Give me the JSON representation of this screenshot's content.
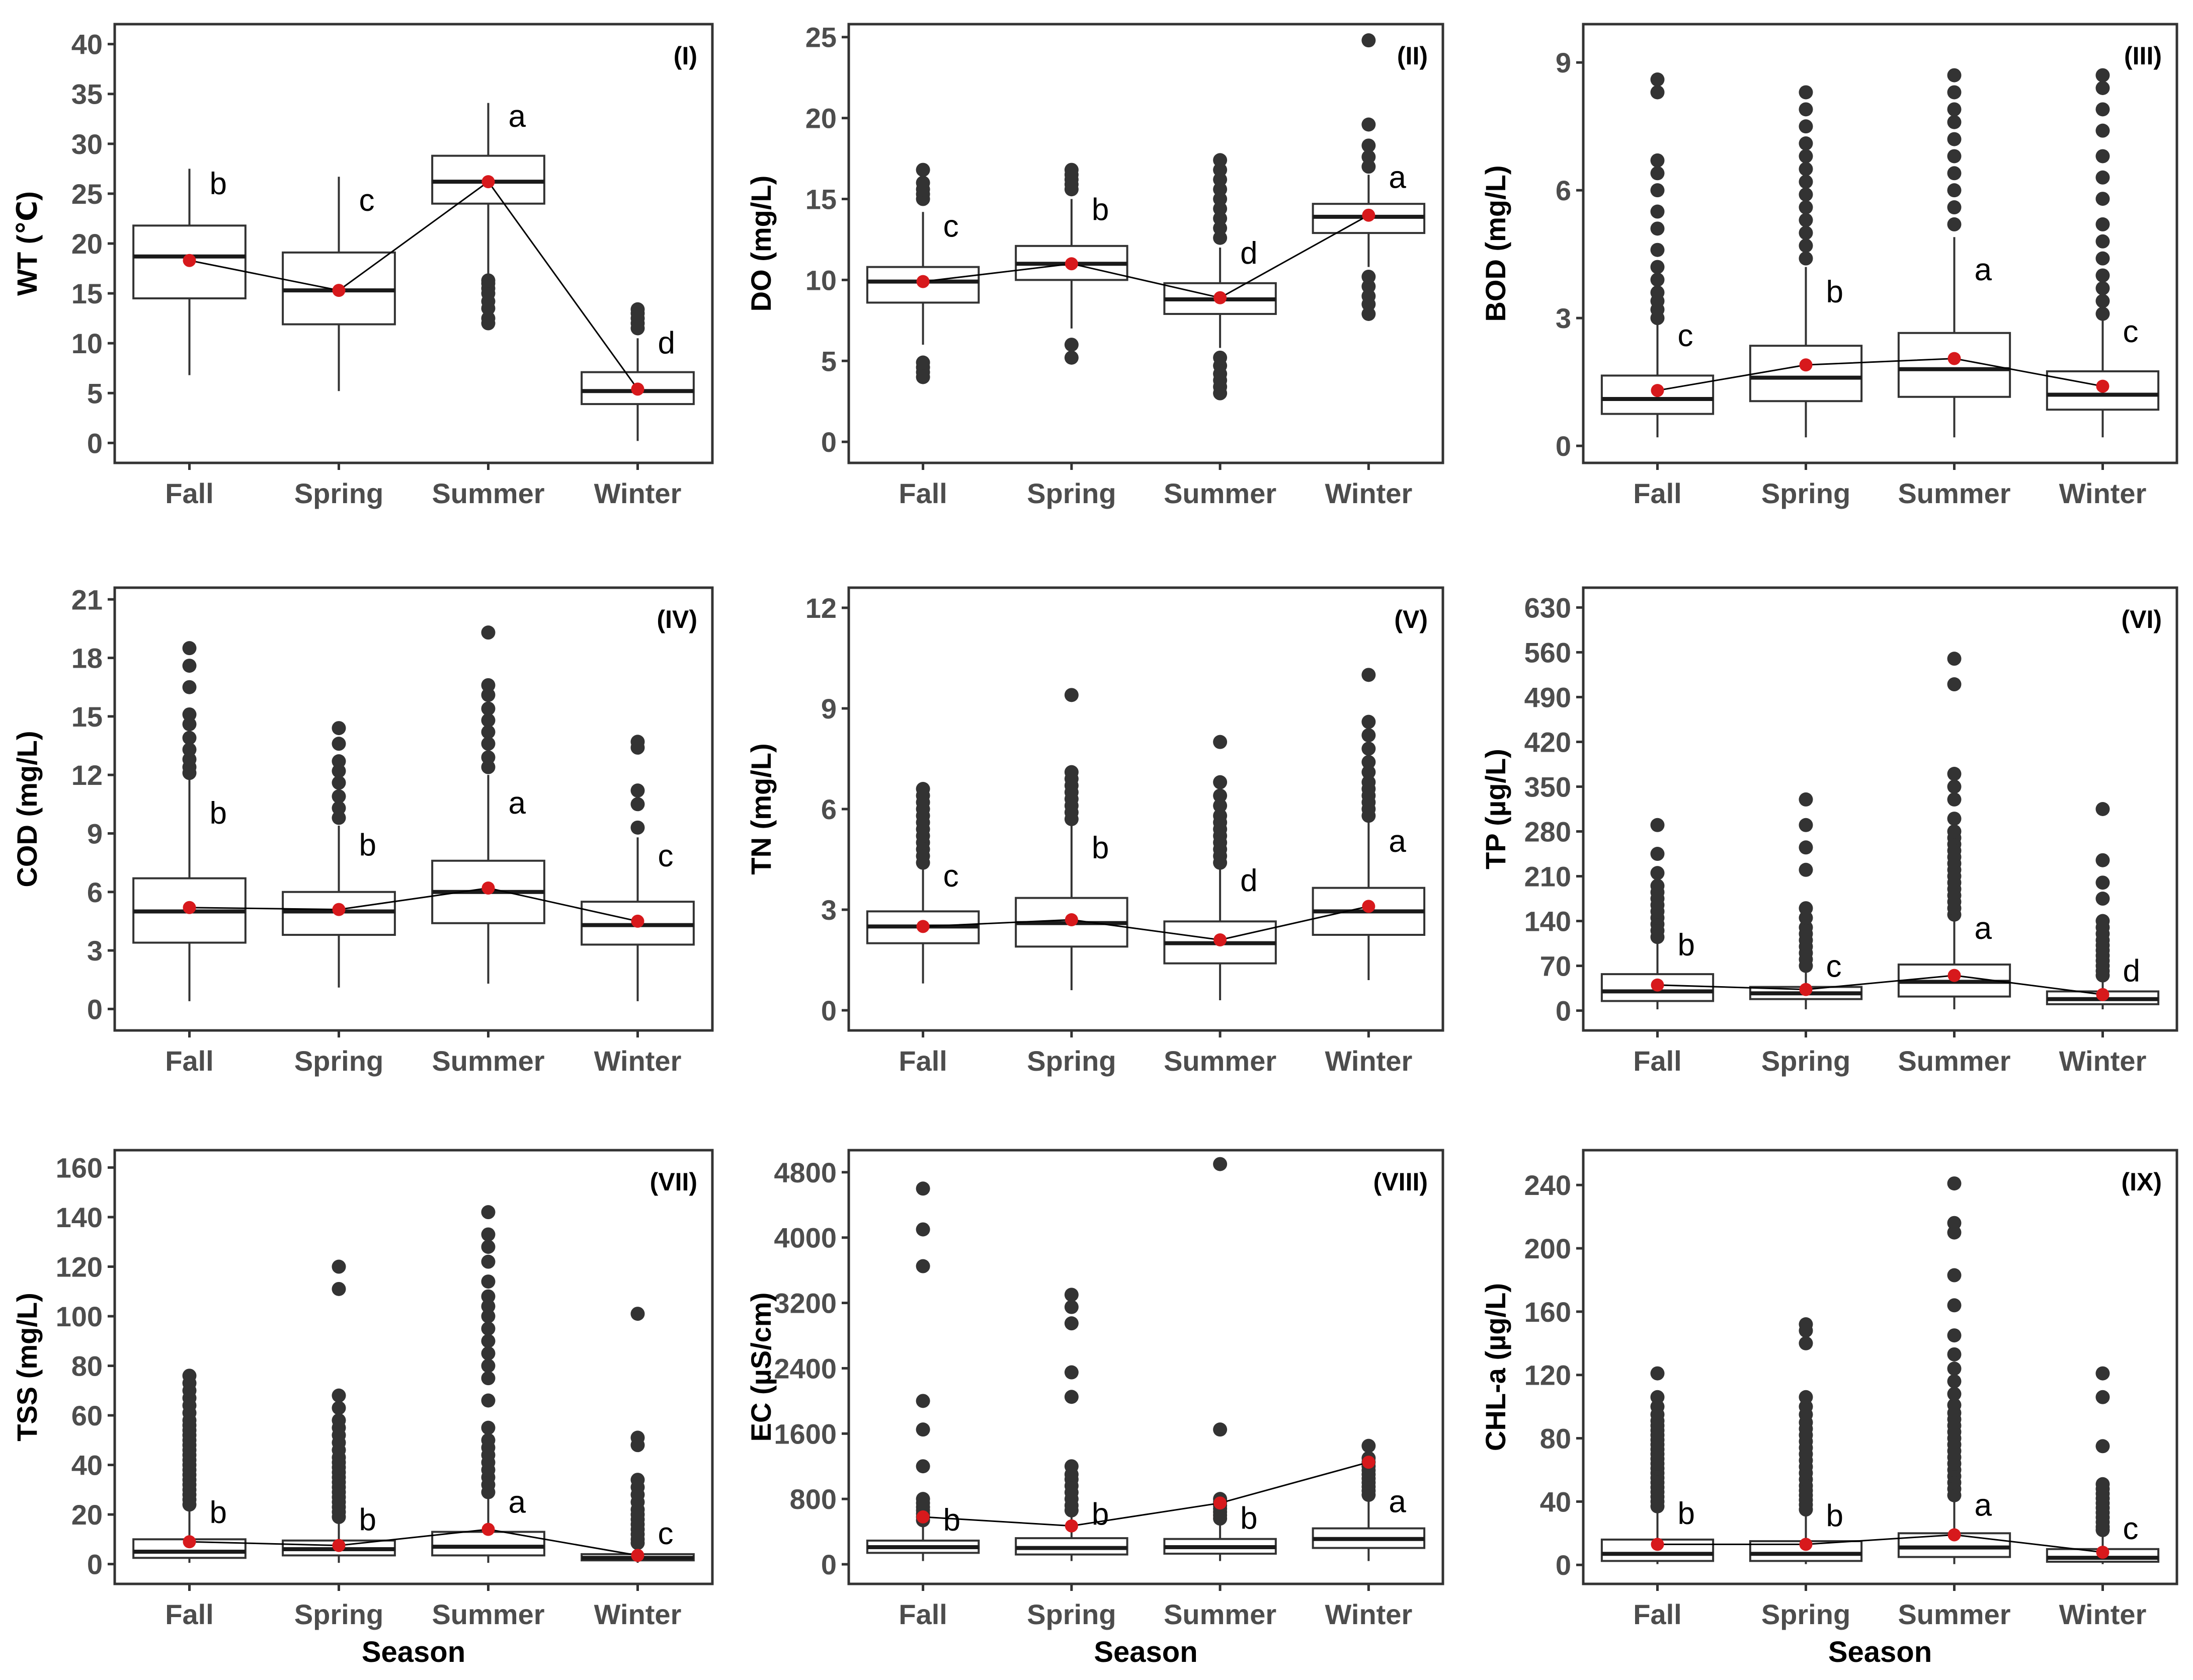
{
  "colors": {
    "mean": "#d7191c",
    "outlier": "#333333",
    "box_fill": "#ffffff"
  },
  "chart_data": [
    {
      "type": "box",
      "panel": "(I)",
      "ylabel": "WT (℃)",
      "xlabel": "",
      "categories": [
        "Fall",
        "Spring",
        "Summer",
        "Winter"
      ],
      "ylim": [
        -2,
        42
      ],
      "yticks": [
        0,
        5,
        10,
        15,
        20,
        25,
        30,
        35,
        40
      ],
      "boxes": [
        {
          "whislo": 6.8,
          "q1": 14.5,
          "med": 18.7,
          "q3": 21.8,
          "whishi": 27.5,
          "mean": 18.3,
          "letter": "b",
          "fliers": []
        },
        {
          "whislo": 5.2,
          "q1": 11.9,
          "med": 15.3,
          "q3": 19.1,
          "whishi": 26.7,
          "mean": 15.3,
          "letter": "c",
          "fliers": []
        },
        {
          "whislo": 17.0,
          "q1": 24.0,
          "med": 26.2,
          "q3": 28.8,
          "whishi": 34.1,
          "mean": 26.2,
          "letter": "a",
          "fliers": [
            12,
            12.5,
            13.5,
            14.2,
            15,
            15.5,
            16,
            16.3
          ]
        },
        {
          "whislo": 0.2,
          "q1": 3.9,
          "med": 5.2,
          "q3": 7.1,
          "whishi": 10.5,
          "mean": 5.4,
          "letter": "d",
          "fliers": [
            11.5,
            12,
            12.5,
            13,
            13.4
          ]
        }
      ]
    },
    {
      "type": "box",
      "panel": "(II)",
      "ylabel": "DO (mg/L)",
      "xlabel": "",
      "categories": [
        "Fall",
        "Spring",
        "Summer",
        "Winter"
      ],
      "ylim": [
        -1.3,
        25.8
      ],
      "yticks": [
        0,
        5,
        10,
        15,
        20,
        25
      ],
      "boxes": [
        {
          "whislo": 6.0,
          "q1": 8.6,
          "med": 9.9,
          "q3": 10.8,
          "whishi": 14.2,
          "mean": 9.9,
          "letter": "c",
          "fliers": [
            4.0,
            4.3,
            4.6,
            4.9,
            15.0,
            15.3,
            15.6,
            16.0,
            16.8
          ]
        },
        {
          "whislo": 7.0,
          "q1": 10.0,
          "med": 11.0,
          "q3": 12.1,
          "whishi": 15.0,
          "mean": 11.0,
          "letter": "b",
          "fliers": [
            5.2,
            6.0,
            15.6,
            15.9,
            16.2,
            16.5,
            16.8
          ]
        },
        {
          "whislo": 5.8,
          "q1": 7.9,
          "med": 8.8,
          "q3": 9.8,
          "whishi": 12.0,
          "mean": 8.9,
          "letter": "d",
          "fliers": [
            3.0,
            3.4,
            3.8,
            4.2,
            4.7,
            5.2,
            12.6,
            13.2,
            13.8,
            14.4,
            15.0,
            15.6,
            16.2,
            16.8,
            17.4
          ]
        },
        {
          "whislo": 10.8,
          "q1": 12.9,
          "med": 13.9,
          "q3": 14.7,
          "whishi": 16.5,
          "mean": 14.0,
          "letter": "a",
          "fliers": [
            7.9,
            8.5,
            9.0,
            9.6,
            10.2,
            17.0,
            17.6,
            18.3,
            19.6,
            24.8
          ]
        }
      ]
    },
    {
      "type": "box",
      "panel": "(III)",
      "ylabel": "BOD (mg/L)",
      "xlabel": "",
      "categories": [
        "Fall",
        "Spring",
        "Summer",
        "Winter"
      ],
      "ylim": [
        -0.4,
        9.9
      ],
      "yticks": [
        0,
        3,
        6,
        9
      ],
      "boxes": [
        {
          "whislo": 0.2,
          "q1": 0.75,
          "med": 1.1,
          "q3": 1.65,
          "whishi": 2.9,
          "mean": 1.3,
          "letter": "c",
          "fliers": [
            3.0,
            3.2,
            3.4,
            3.6,
            3.9,
            4.2,
            4.6,
            5.1,
            5.5,
            6.0,
            6.4,
            6.7,
            8.3,
            8.6
          ]
        },
        {
          "whislo": 0.2,
          "q1": 1.05,
          "med": 1.6,
          "q3": 2.35,
          "whishi": 4.2,
          "mean": 1.9,
          "letter": "b",
          "fliers": [
            4.4,
            4.7,
            5.0,
            5.3,
            5.6,
            5.9,
            6.2,
            6.5,
            6.8,
            7.1,
            7.5,
            7.9,
            8.3
          ]
        },
        {
          "whislo": 0.2,
          "q1": 1.15,
          "med": 1.8,
          "q3": 2.65,
          "whishi": 4.9,
          "mean": 2.05,
          "letter": "a",
          "fliers": [
            5.2,
            5.6,
            6.0,
            6.4,
            6.8,
            7.2,
            7.6,
            7.9,
            8.3,
            8.7
          ]
        },
        {
          "whislo": 0.2,
          "q1": 0.85,
          "med": 1.2,
          "q3": 1.75,
          "whishi": 3.0,
          "mean": 1.4,
          "letter": "c",
          "fliers": [
            3.1,
            3.4,
            3.7,
            4.0,
            4.4,
            4.8,
            5.2,
            5.8,
            6.3,
            6.8,
            7.4,
            7.9,
            8.4,
            8.7
          ]
        }
      ]
    },
    {
      "type": "box",
      "panel": "(IV)",
      "ylabel": "COD (mg/L)",
      "xlabel": "",
      "categories": [
        "Fall",
        "Spring",
        "Summer",
        "Winter"
      ],
      "ylim": [
        -1.1,
        21.6
      ],
      "yticks": [
        0,
        3,
        6,
        9,
        12,
        15,
        18,
        21
      ],
      "boxes": [
        {
          "whislo": 0.4,
          "q1": 3.4,
          "med": 5.0,
          "q3": 6.7,
          "whishi": 11.8,
          "mean": 5.2,
          "letter": "b",
          "fliers": [
            12.1,
            12.4,
            12.8,
            13.3,
            13.9,
            14.6,
            15.1,
            16.5,
            17.6,
            18.5
          ]
        },
        {
          "whislo": 1.1,
          "q1": 3.8,
          "med": 5.0,
          "q3": 6.0,
          "whishi": 9.4,
          "mean": 5.1,
          "letter": "b",
          "fliers": [
            9.8,
            10.3,
            10.9,
            11.6,
            12.2,
            12.7,
            13.6,
            14.4
          ]
        },
        {
          "whislo": 1.3,
          "q1": 4.4,
          "med": 6.0,
          "q3": 7.6,
          "whishi": 12.0,
          "mean": 6.2,
          "letter": "a",
          "fliers": [
            12.4,
            12.9,
            13.6,
            14.2,
            14.8,
            15.4,
            16.1,
            16.6,
            19.3
          ]
        },
        {
          "whislo": 0.4,
          "q1": 3.3,
          "med": 4.3,
          "q3": 5.5,
          "whishi": 8.8,
          "mean": 4.5,
          "letter": "c",
          "fliers": [
            9.3,
            10.5,
            11.2,
            13.4,
            13.7
          ]
        }
      ]
    },
    {
      "type": "box",
      "panel": "(V)",
      "ylabel": "TN (mg/L)",
      "xlabel": "",
      "categories": [
        "Fall",
        "Spring",
        "Summer",
        "Winter"
      ],
      "ylim": [
        -0.6,
        12.6
      ],
      "yticks": [
        0,
        3,
        6,
        9,
        12
      ],
      "boxes": [
        {
          "whislo": 0.8,
          "q1": 2.0,
          "med": 2.5,
          "q3": 2.95,
          "whishi": 4.3,
          "mean": 2.5,
          "letter": "c",
          "fliers": [
            4.4,
            4.6,
            4.8,
            5.0,
            5.2,
            5.4,
            5.6,
            5.8,
            6.0,
            6.2,
            6.4,
            6.6
          ]
        },
        {
          "whislo": 0.6,
          "q1": 1.9,
          "med": 2.6,
          "q3": 3.35,
          "whishi": 5.5,
          "mean": 2.7,
          "letter": "b",
          "fliers": [
            5.7,
            5.9,
            6.1,
            6.3,
            6.5,
            6.7,
            6.9,
            7.1,
            9.4
          ]
        },
        {
          "whislo": 0.3,
          "q1": 1.4,
          "med": 2.0,
          "q3": 2.65,
          "whishi": 4.3,
          "mean": 2.1,
          "letter": "d",
          "fliers": [
            4.4,
            4.6,
            4.8,
            5.0,
            5.2,
            5.4,
            5.6,
            5.8,
            6.1,
            6.4,
            6.8,
            8.0
          ]
        },
        {
          "whislo": 0.9,
          "q1": 2.25,
          "med": 2.95,
          "q3": 3.65,
          "whishi": 5.6,
          "mean": 3.1,
          "letter": "a",
          "fliers": [
            5.8,
            6.0,
            6.2,
            6.4,
            6.6,
            6.8,
            7.1,
            7.4,
            7.8,
            8.2,
            8.6,
            10.0
          ]
        }
      ]
    },
    {
      "type": "box",
      "panel": "(VI)",
      "ylabel": "TP (µg/L)",
      "xlabel": "",
      "categories": [
        "Fall",
        "Spring",
        "Summer",
        "Winter"
      ],
      "ylim": [
        -31,
        661
      ],
      "yticks": [
        0,
        70,
        140,
        210,
        280,
        350,
        420,
        490,
        560,
        630
      ],
      "boxes": [
        {
          "whislo": 2,
          "q1": 15,
          "med": 30,
          "q3": 57,
          "whishi": 110,
          "mean": 40,
          "letter": "b",
          "fliers": [
            115,
            125,
            135,
            145,
            155,
            165,
            175,
            185,
            195,
            215,
            245,
            290
          ]
        },
        {
          "whislo": 2,
          "q1": 18,
          "med": 27,
          "q3": 37,
          "whishi": 62,
          "mean": 33,
          "letter": "c",
          "fliers": [
            70,
            80,
            90,
            100,
            110,
            120,
            130,
            145,
            160,
            220,
            255,
            290,
            330
          ]
        },
        {
          "whislo": 2,
          "q1": 22,
          "med": 45,
          "q3": 72,
          "whishi": 145,
          "mean": 55,
          "letter": "a",
          "fliers": [
            150,
            160,
            170,
            180,
            190,
            200,
            210,
            220,
            230,
            240,
            250,
            260,
            270,
            280,
            300,
            330,
            350,
            370,
            510,
            550
          ]
        },
        {
          "whislo": 2,
          "q1": 10,
          "med": 18,
          "q3": 30,
          "whishi": 52,
          "mean": 25,
          "letter": "d",
          "fliers": [
            55,
            62,
            70,
            78,
            86,
            94,
            102,
            110,
            120,
            130,
            140,
            175,
            200,
            235,
            315
          ]
        }
      ]
    },
    {
      "type": "box",
      "panel": "(VII)",
      "ylabel": "TSS (mg/L)",
      "xlabel": "Season",
      "categories": [
        "Fall",
        "Spring",
        "Summer",
        "Winter"
      ],
      "ylim": [
        -8,
        167
      ],
      "yticks": [
        0,
        20,
        40,
        60,
        80,
        100,
        120,
        140,
        160
      ],
      "boxes": [
        {
          "whislo": 0.5,
          "q1": 2.5,
          "med": 5.0,
          "q3": 10.0,
          "whishi": 22,
          "mean": 9.0,
          "letter": "b",
          "fliers": [
            24,
            26,
            28,
            30,
            32,
            34,
            36,
            38,
            40,
            42,
            44,
            46,
            48,
            50,
            52,
            54,
            56,
            58,
            61,
            64,
            67,
            70,
            73,
            76
          ]
        },
        {
          "whislo": 0.5,
          "q1": 3.5,
          "med": 6.0,
          "q3": 9.5,
          "whishi": 17,
          "mean": 7.5,
          "letter": "b",
          "fliers": [
            19,
            21,
            23,
            25,
            27,
            29,
            31,
            33,
            35,
            37,
            39,
            41,
            43,
            46,
            49,
            52,
            55,
            58,
            63,
            68,
            111,
            120
          ]
        },
        {
          "whislo": 0.5,
          "q1": 3.5,
          "med": 7.0,
          "q3": 13.0,
          "whishi": 27,
          "mean": 14.0,
          "letter": "a",
          "fliers": [
            29,
            32,
            35,
            38,
            41,
            44,
            47,
            50,
            55,
            66,
            75,
            80,
            85,
            90,
            95,
            100,
            104,
            108,
            114,
            122,
            128,
            133,
            142
          ]
        },
        {
          "whislo": 0.5,
          "q1": 1.5,
          "med": 2.5,
          "q3": 4.0,
          "whishi": 7.5,
          "mean": 3.5,
          "letter": "c",
          "fliers": [
            8.5,
            10,
            12,
            14,
            16,
            18,
            20,
            22,
            25,
            28,
            31,
            34,
            48,
            51,
            101
          ]
        }
      ]
    },
    {
      "type": "box",
      "panel": "(VIII)",
      "ylabel": "EC (µS/cm)",
      "xlabel": "Season",
      "categories": [
        "Fall",
        "Spring",
        "Summer",
        "Winter"
      ],
      "ylim": [
        -240,
        5070
      ],
      "yticks": [
        0,
        800,
        1600,
        2400,
        3200,
        4000,
        4800
      ],
      "boxes": [
        {
          "whislo": 40,
          "q1": 140,
          "med": 210,
          "q3": 290,
          "whishi": 500,
          "mean": 580,
          "letter": "b",
          "fliers": [
            540,
            580,
            620,
            660,
            700,
            750,
            800,
            1200,
            1650,
            2000,
            3650,
            4100,
            4600
          ]
        },
        {
          "whislo": 40,
          "q1": 120,
          "med": 200,
          "q3": 320,
          "whishi": 620,
          "mean": 470,
          "letter": "b",
          "fliers": [
            660,
            720,
            800,
            880,
            960,
            1040,
            1100,
            1200,
            2050,
            2350,
            2950,
            3150,
            3300
          ]
        },
        {
          "whislo": 40,
          "q1": 130,
          "med": 210,
          "q3": 310,
          "whishi": 520,
          "mean": 750,
          "letter": "b",
          "fliers": [
            560,
            600,
            640,
            680,
            720,
            760,
            800,
            1650,
            4900
          ]
        },
        {
          "whislo": 40,
          "q1": 200,
          "med": 310,
          "q3": 440,
          "whishi": 800,
          "mean": 1250,
          "letter": "a",
          "fliers": [
            850,
            900,
            950,
            1000,
            1050,
            1100,
            1150,
            1200,
            1250,
            1300,
            1450
          ]
        }
      ]
    },
    {
      "type": "box",
      "panel": "(IX)",
      "ylabel": "CHL-a (µg/L)",
      "xlabel": "Season",
      "categories": [
        "Fall",
        "Spring",
        "Summer",
        "Winter"
      ],
      "ylim": [
        -12,
        262
      ],
      "yticks": [
        0,
        40,
        80,
        120,
        160,
        200,
        240
      ],
      "boxes": [
        {
          "whislo": 0.5,
          "q1": 2.5,
          "med": 7.0,
          "q3": 16.0,
          "whishi": 34,
          "mean": 13.0,
          "letter": "b",
          "fliers": [
            37,
            40,
            43,
            46,
            49,
            52,
            55,
            58,
            61,
            64,
            67,
            70,
            73,
            76,
            79,
            82,
            85,
            88,
            91,
            95,
            100,
            106,
            121
          ]
        },
        {
          "whislo": 0.5,
          "q1": 2.5,
          "med": 7.0,
          "q3": 15.0,
          "whishi": 32,
          "mean": 13.0,
          "letter": "b",
          "fliers": [
            35,
            38,
            41,
            44,
            47,
            50,
            54,
            58,
            62,
            66,
            70,
            74,
            78,
            82,
            86,
            90,
            95,
            100,
            106,
            140,
            148,
            152
          ]
        },
        {
          "whislo": 0.5,
          "q1": 5.0,
          "med": 11.0,
          "q3": 20.0,
          "whishi": 40,
          "mean": 19.0,
          "letter": "a",
          "fliers": [
            44,
            48,
            52,
            56,
            60,
            64,
            68,
            72,
            76,
            80,
            84,
            88,
            92,
            96,
            101,
            108,
            116,
            124,
            133,
            145,
            164,
            183,
            210,
            216,
            241
          ]
        },
        {
          "whislo": 0.5,
          "q1": 2.0,
          "med": 4.5,
          "q3": 10.0,
          "whishi": 20,
          "mean": 8.0,
          "letter": "c",
          "fliers": [
            22,
            24,
            27,
            30,
            33,
            36,
            39,
            42,
            45,
            48,
            51,
            75,
            106,
            121
          ]
        }
      ]
    }
  ]
}
